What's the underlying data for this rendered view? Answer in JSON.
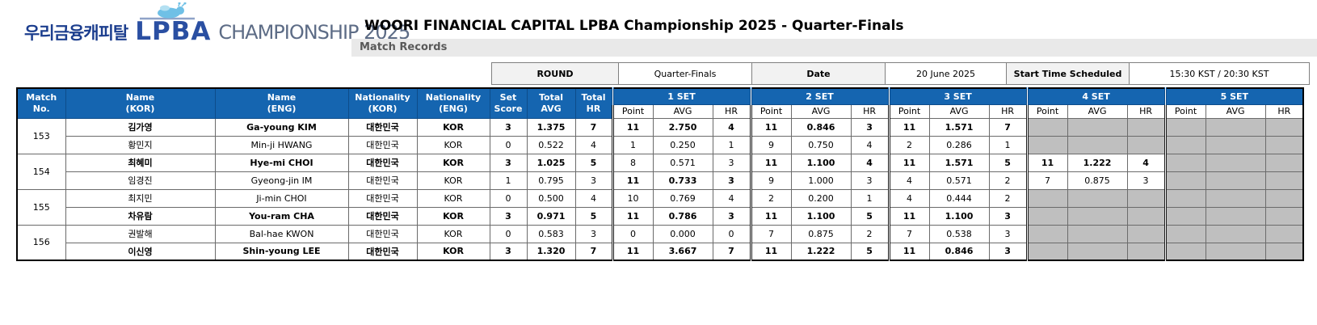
{
  "header": {
    "logo_kor": "우리금융캐피탈",
    "logo_lpba": "LPBA",
    "logo_championship": "CHAMPIONSHIP 2025",
    "title": "WOORI FINANCIAL CAPITAL LPBA Championship 2025 - Quarter-Finals",
    "section": "Match Records"
  },
  "info_bar": {
    "round_label": "ROUND",
    "round_value": "Quarter-Finals",
    "date_label": "Date",
    "date_value": "20 June 2025",
    "start_label": "Start Time Scheduled",
    "start_value": "15:30 KST / 20:30 KST"
  },
  "table": {
    "col_headers": [
      "Match\nNo.",
      "Name\n(KOR)",
      "Name\n(ENG)",
      "Nationality\n(KOR)",
      "Nationality\n(ENG)",
      "Set\nScore",
      "Total\nAVG",
      "Total\nHR"
    ],
    "set_headers": [
      "1 SET",
      "2 SET",
      "3 SET",
      "4 SET",
      "5 SET"
    ],
    "sub_headers": [
      "Point",
      "AVG",
      "HR"
    ],
    "matches": [
      {
        "no": "153",
        "players": [
          {
            "kor": "김가영",
            "eng": "Ga-young KIM",
            "nat_kor": "대한민국",
            "nat_eng": "KOR",
            "winner": true,
            "set_score": "3",
            "total_avg": "1.375",
            "total_hr": "7",
            "sets": [
              {
                "point": "11",
                "avg": "2.750",
                "hr": "4",
                "win": true
              },
              {
                "point": "11",
                "avg": "0.846",
                "hr": "3",
                "win": true
              },
              {
                "point": "11",
                "avg": "1.571",
                "hr": "7",
                "win": true
              },
              null,
              null
            ]
          },
          {
            "kor": "황민지",
            "eng": "Min-ji HWANG",
            "nat_kor": "대한민국",
            "nat_eng": "KOR",
            "winner": false,
            "set_score": "0",
            "total_avg": "0.522",
            "total_hr": "4",
            "sets": [
              {
                "point": "1",
                "avg": "0.250",
                "hr": "1",
                "win": false
              },
              {
                "point": "9",
                "avg": "0.750",
                "hr": "4",
                "win": false
              },
              {
                "point": "2",
                "avg": "0.286",
                "hr": "1",
                "win": false
              },
              null,
              null
            ]
          }
        ]
      },
      {
        "no": "154",
        "players": [
          {
            "kor": "최혜미",
            "eng": "Hye-mi CHOI",
            "nat_kor": "대한민국",
            "nat_eng": "KOR",
            "winner": true,
            "set_score": "3",
            "total_avg": "1.025",
            "total_hr": "5",
            "sets": [
              {
                "point": "8",
                "avg": "0.571",
                "hr": "3",
                "win": false
              },
              {
                "point": "11",
                "avg": "1.100",
                "hr": "4",
                "win": true
              },
              {
                "point": "11",
                "avg": "1.571",
                "hr": "5",
                "win": true
              },
              {
                "point": "11",
                "avg": "1.222",
                "hr": "4",
                "win": true
              },
              null
            ]
          },
          {
            "kor": "임경진",
            "eng": "Gyeong-jin IM",
            "nat_kor": "대한민국",
            "nat_eng": "KOR",
            "winner": false,
            "set_score": "1",
            "total_avg": "0.795",
            "total_hr": "3",
            "sets": [
              {
                "point": "11",
                "avg": "0.733",
                "hr": "3",
                "win": true
              },
              {
                "point": "9",
                "avg": "1.000",
                "hr": "3",
                "win": false
              },
              {
                "point": "4",
                "avg": "0.571",
                "hr": "2",
                "win": false
              },
              {
                "point": "7",
                "avg": "0.875",
                "hr": "3",
                "win": false
              },
              null
            ]
          }
        ]
      },
      {
        "no": "155",
        "players": [
          {
            "kor": "최지민",
            "eng": "Ji-min CHOI",
            "nat_kor": "대한민국",
            "nat_eng": "KOR",
            "winner": false,
            "set_score": "0",
            "total_avg": "0.500",
            "total_hr": "4",
            "sets": [
              {
                "point": "10",
                "avg": "0.769",
                "hr": "4",
                "win": false
              },
              {
                "point": "2",
                "avg": "0.200",
                "hr": "1",
                "win": false
              },
              {
                "point": "4",
                "avg": "0.444",
                "hr": "2",
                "win": false
              },
              null,
              null
            ]
          },
          {
            "kor": "차유람",
            "eng": "You-ram CHA",
            "nat_kor": "대한민국",
            "nat_eng": "KOR",
            "winner": true,
            "set_score": "3",
            "total_avg": "0.971",
            "total_hr": "5",
            "sets": [
              {
                "point": "11",
                "avg": "0.786",
                "hr": "3",
                "win": true
              },
              {
                "point": "11",
                "avg": "1.100",
                "hr": "5",
                "win": true
              },
              {
                "point": "11",
                "avg": "1.100",
                "hr": "3",
                "win": true
              },
              null,
              null
            ]
          }
        ]
      },
      {
        "no": "156",
        "players": [
          {
            "kor": "권발해",
            "eng": "Bal-hae KWON",
            "nat_kor": "대한민국",
            "nat_eng": "KOR",
            "winner": false,
            "set_score": "0",
            "total_avg": "0.583",
            "total_hr": "3",
            "sets": [
              {
                "point": "0",
                "avg": "0.000",
                "hr": "0",
                "win": false
              },
              {
                "point": "7",
                "avg": "0.875",
                "hr": "2",
                "win": false
              },
              {
                "point": "7",
                "avg": "0.538",
                "hr": "3",
                "win": false
              },
              null,
              null
            ]
          },
          {
            "kor": "이신영",
            "eng": "Shin-young LEE",
            "nat_kor": "대한민국",
            "nat_eng": "KOR",
            "winner": true,
            "set_score": "3",
            "total_avg": "1.320",
            "total_hr": "7",
            "sets": [
              {
                "point": "11",
                "avg": "3.667",
                "hr": "7",
                "win": true
              },
              {
                "point": "11",
                "avg": "1.222",
                "hr": "5",
                "win": true
              },
              {
                "point": "11",
                "avg": "0.846",
                "hr": "3",
                "win": true
              },
              null,
              null
            ]
          }
        ]
      }
    ]
  },
  "colors": {
    "header_blue": "#1565b0",
    "empty_grey": "#bfbfbf",
    "info_head_grey": "#f2f2f2",
    "section_bar_grey": "#e9e9e9",
    "logo_navy": "#1c3e8e",
    "logo_blue": "#2a4fa2"
  }
}
